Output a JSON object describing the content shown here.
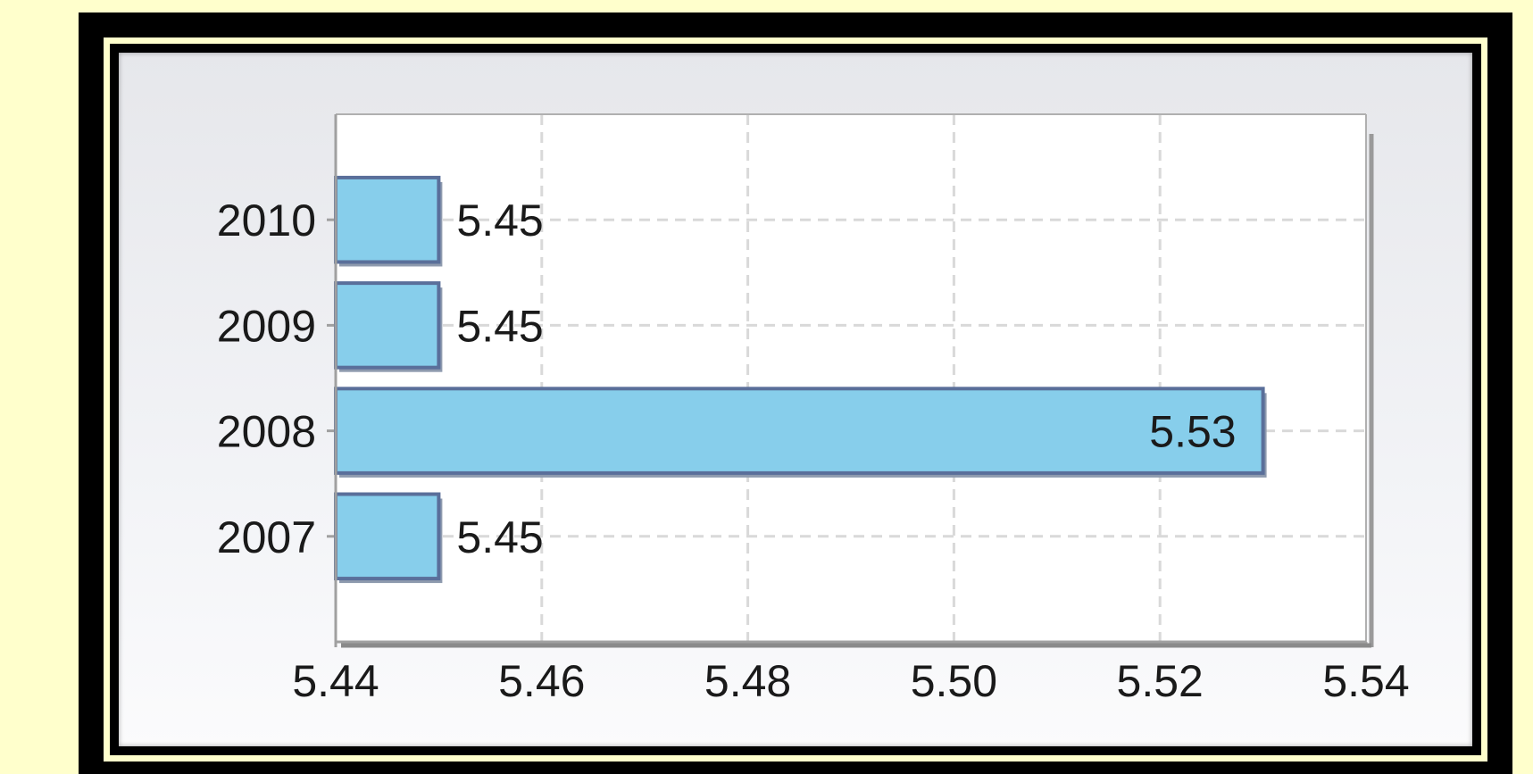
{
  "chart_data": {
    "type": "bar",
    "orientation": "horizontal",
    "categories": [
      "2007",
      "2008",
      "2009",
      "2010"
    ],
    "values": [
      5.45,
      5.53,
      5.45,
      5.45
    ],
    "value_labels": [
      "5.45",
      "5.53",
      "5.45",
      "5.45"
    ],
    "xlim": [
      5.44,
      5.54
    ],
    "x_ticks": [
      "5.44",
      "5.46",
      "5.48",
      "5.50",
      "5.52",
      "5.54"
    ],
    "grid": true,
    "title": "",
    "xlabel": "",
    "ylabel": "",
    "colors": {
      "bar_fill": "#87ceeb",
      "bar_stroke": "#5a6f9a",
      "plot_bg": "#ffffff",
      "grid": "#d9d9d9",
      "page_bg": "#ffffcc",
      "frame": "#000000"
    }
  }
}
